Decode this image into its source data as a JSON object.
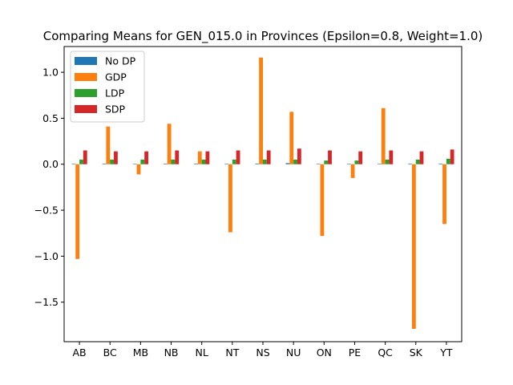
{
  "chart_data": {
    "type": "bar",
    "title": "Comparing Means for GEN_015.0 in Provinces (Epsilon=0.8, Weight=1.0)",
    "xlabel": "",
    "ylabel": "",
    "categories": [
      "AB",
      "BC",
      "MB",
      "NB",
      "NL",
      "NT",
      "NS",
      "NU",
      "ON",
      "PE",
      "QC",
      "SK",
      "YT"
    ],
    "ylim": [
      -1.93,
      1.28
    ],
    "yticks": [
      -1.5,
      -1.0,
      -0.5,
      0.0,
      0.5,
      1.0
    ],
    "ytick_labels": [
      "−1.5",
      "−1.0",
      "−0.5",
      "0.0",
      "0.5",
      "1.0"
    ],
    "grid": false,
    "legend_position": "upper-left",
    "series": [
      {
        "name": "No DP",
        "color": "#1f77b4",
        "values": [
          0.005,
          0.006,
          0.005,
          0.006,
          0.006,
          0.005,
          0.007,
          0.012,
          0.005,
          0.004,
          0.005,
          0.006,
          0.006
        ]
      },
      {
        "name": "GDP",
        "color": "#ff7f0e",
        "values": [
          -1.03,
          0.41,
          -0.11,
          0.44,
          0.14,
          -0.74,
          1.16,
          0.57,
          -0.78,
          -0.15,
          0.61,
          -1.79,
          -0.65
        ]
      },
      {
        "name": "LDP",
        "color": "#2ca02c",
        "values": [
          0.05,
          0.05,
          0.05,
          0.05,
          0.05,
          0.05,
          0.05,
          0.05,
          0.04,
          0.04,
          0.05,
          0.05,
          0.06
        ]
      },
      {
        "name": "SDP",
        "color": "#d62728",
        "values": [
          0.15,
          0.14,
          0.14,
          0.15,
          0.14,
          0.15,
          0.15,
          0.17,
          0.15,
          0.14,
          0.15,
          0.14,
          0.16
        ]
      }
    ]
  }
}
